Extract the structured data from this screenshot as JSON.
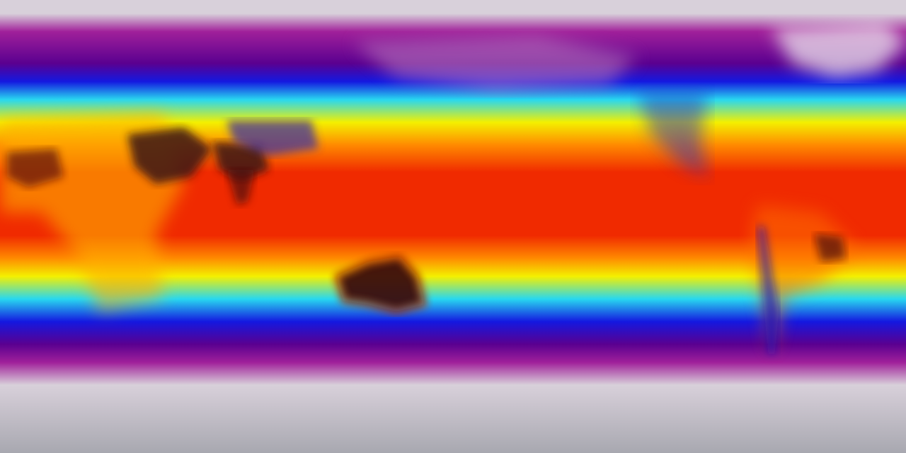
{
  "map": {
    "projection": "equirectangular",
    "palette": {
      "polar_light": "#d8d0da",
      "magenta": "#a0209a",
      "purple": "#5a0090",
      "blue": "#1418e0",
      "cyan": "#28d8f0",
      "yellow": "#f4f000",
      "orange": "#ff8a00",
      "red": "#f02a00",
      "hot_dark": "#3a1010",
      "antarctic_grey": "#a8a8b0"
    }
  }
}
